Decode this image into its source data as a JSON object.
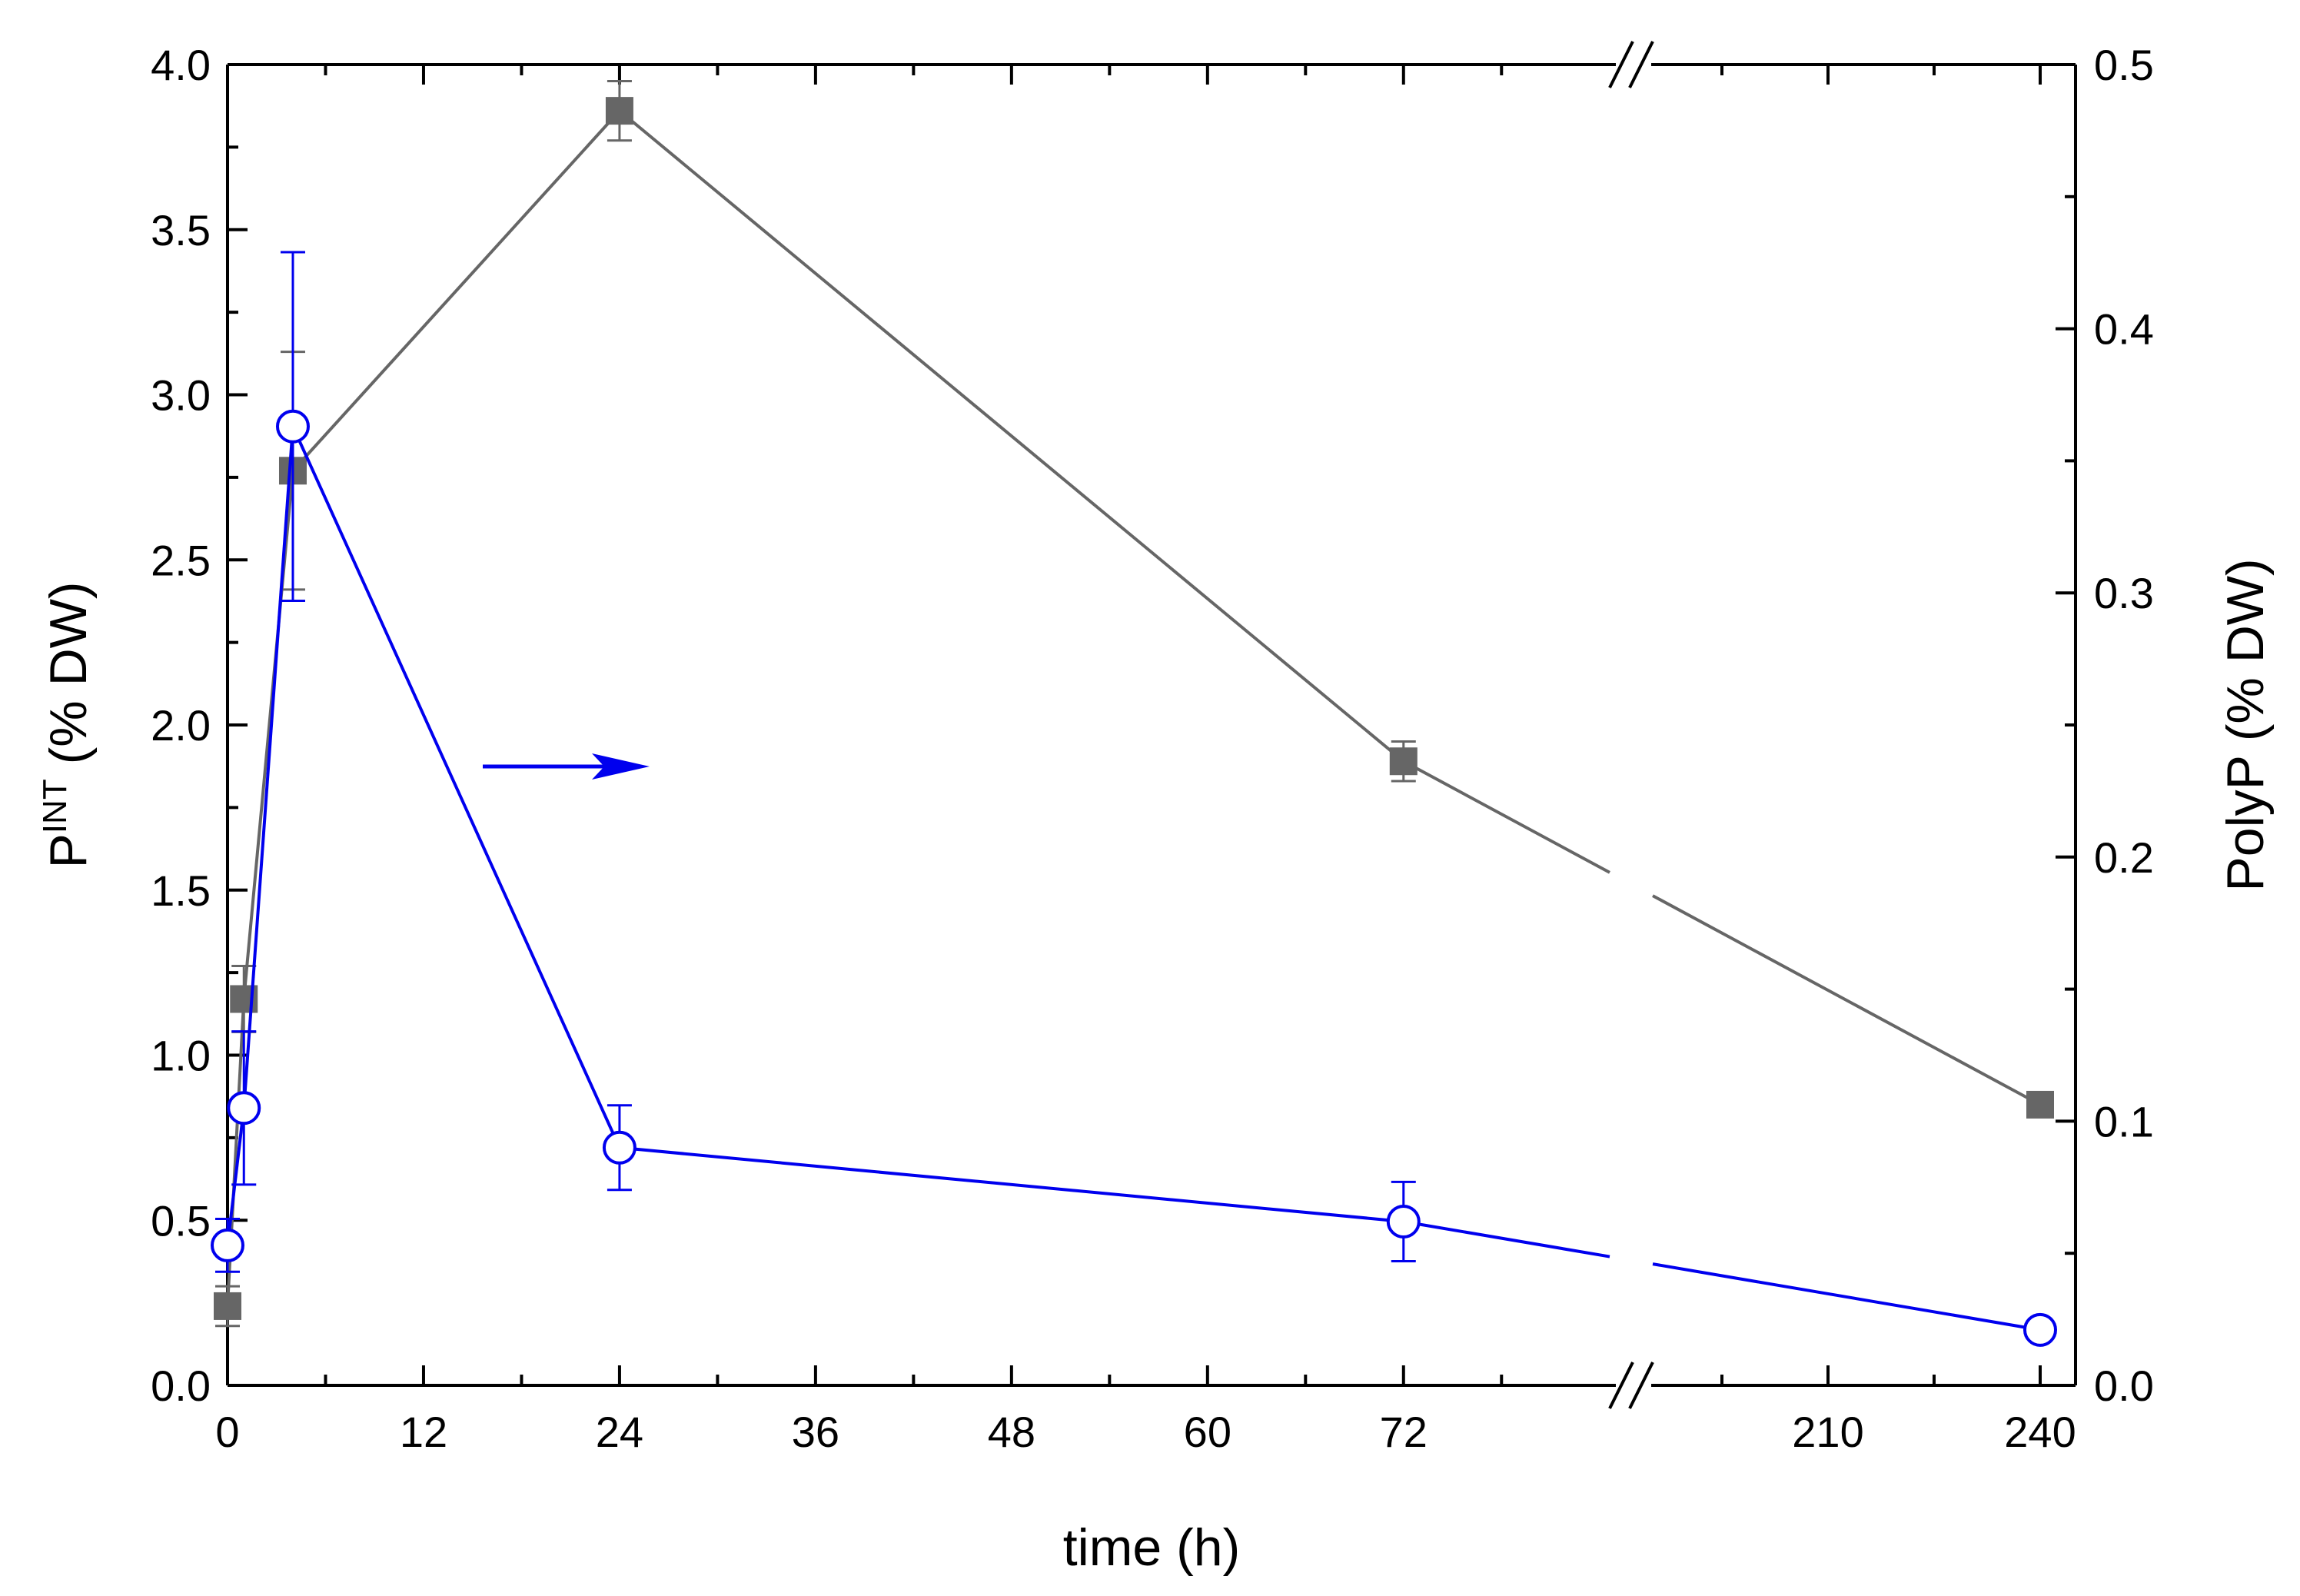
{
  "chart_data": {
    "type": "line",
    "xlabel": "time (h)",
    "ylabel_left": {
      "base": "P",
      "sup": "INT",
      "rest": " (% DW)"
    },
    "ylabel_right": "PolyP (% DW)",
    "x_segments": [
      {
        "range": [
          0,
          85
        ],
        "ticks": [
          0,
          12,
          24,
          36,
          48,
          60,
          72
        ]
      },
      {
        "range": [
          185,
          245
        ],
        "ticks": [
          210,
          240
        ]
      }
    ],
    "x_minor_ticks": [
      6,
      18,
      30,
      42,
      54,
      66,
      78,
      195,
      225
    ],
    "ylim_left": [
      0,
      4
    ],
    "y_ticks_left": [
      "0.0",
      "0.5",
      "1.0",
      "1.5",
      "2.0",
      "2.5",
      "3.0",
      "3.5",
      "4.0"
    ],
    "ylim_right": [
      0,
      0.5
    ],
    "y_ticks_right": [
      "0.0",
      "0.1",
      "0.2",
      "0.3",
      "0.4",
      "0.5"
    ],
    "series": [
      {
        "axis": "left",
        "color": "#666666",
        "marker": "filled-square",
        "x": [
          0,
          1,
          4,
          24,
          72,
          240
        ],
        "y": [
          0.24,
          1.17,
          2.77,
          3.86,
          1.89,
          0.85
        ],
        "err": [
          0.06,
          0.1,
          0.36,
          0.09,
          0.06,
          0.02
        ]
      },
      {
        "axis": "right",
        "color": "#0000ee",
        "marker": "open-circle",
        "x": [
          0,
          1,
          4,
          24,
          72,
          240
        ],
        "y": [
          0.053,
          0.105,
          0.363,
          0.09,
          0.062,
          0.021
        ],
        "err": [
          0.01,
          0.029,
          0.066,
          0.016,
          0.015,
          0.003
        ]
      }
    ],
    "annotation": {
      "type": "arrow",
      "points_to": "right-axis",
      "color": "#0000ee"
    }
  }
}
